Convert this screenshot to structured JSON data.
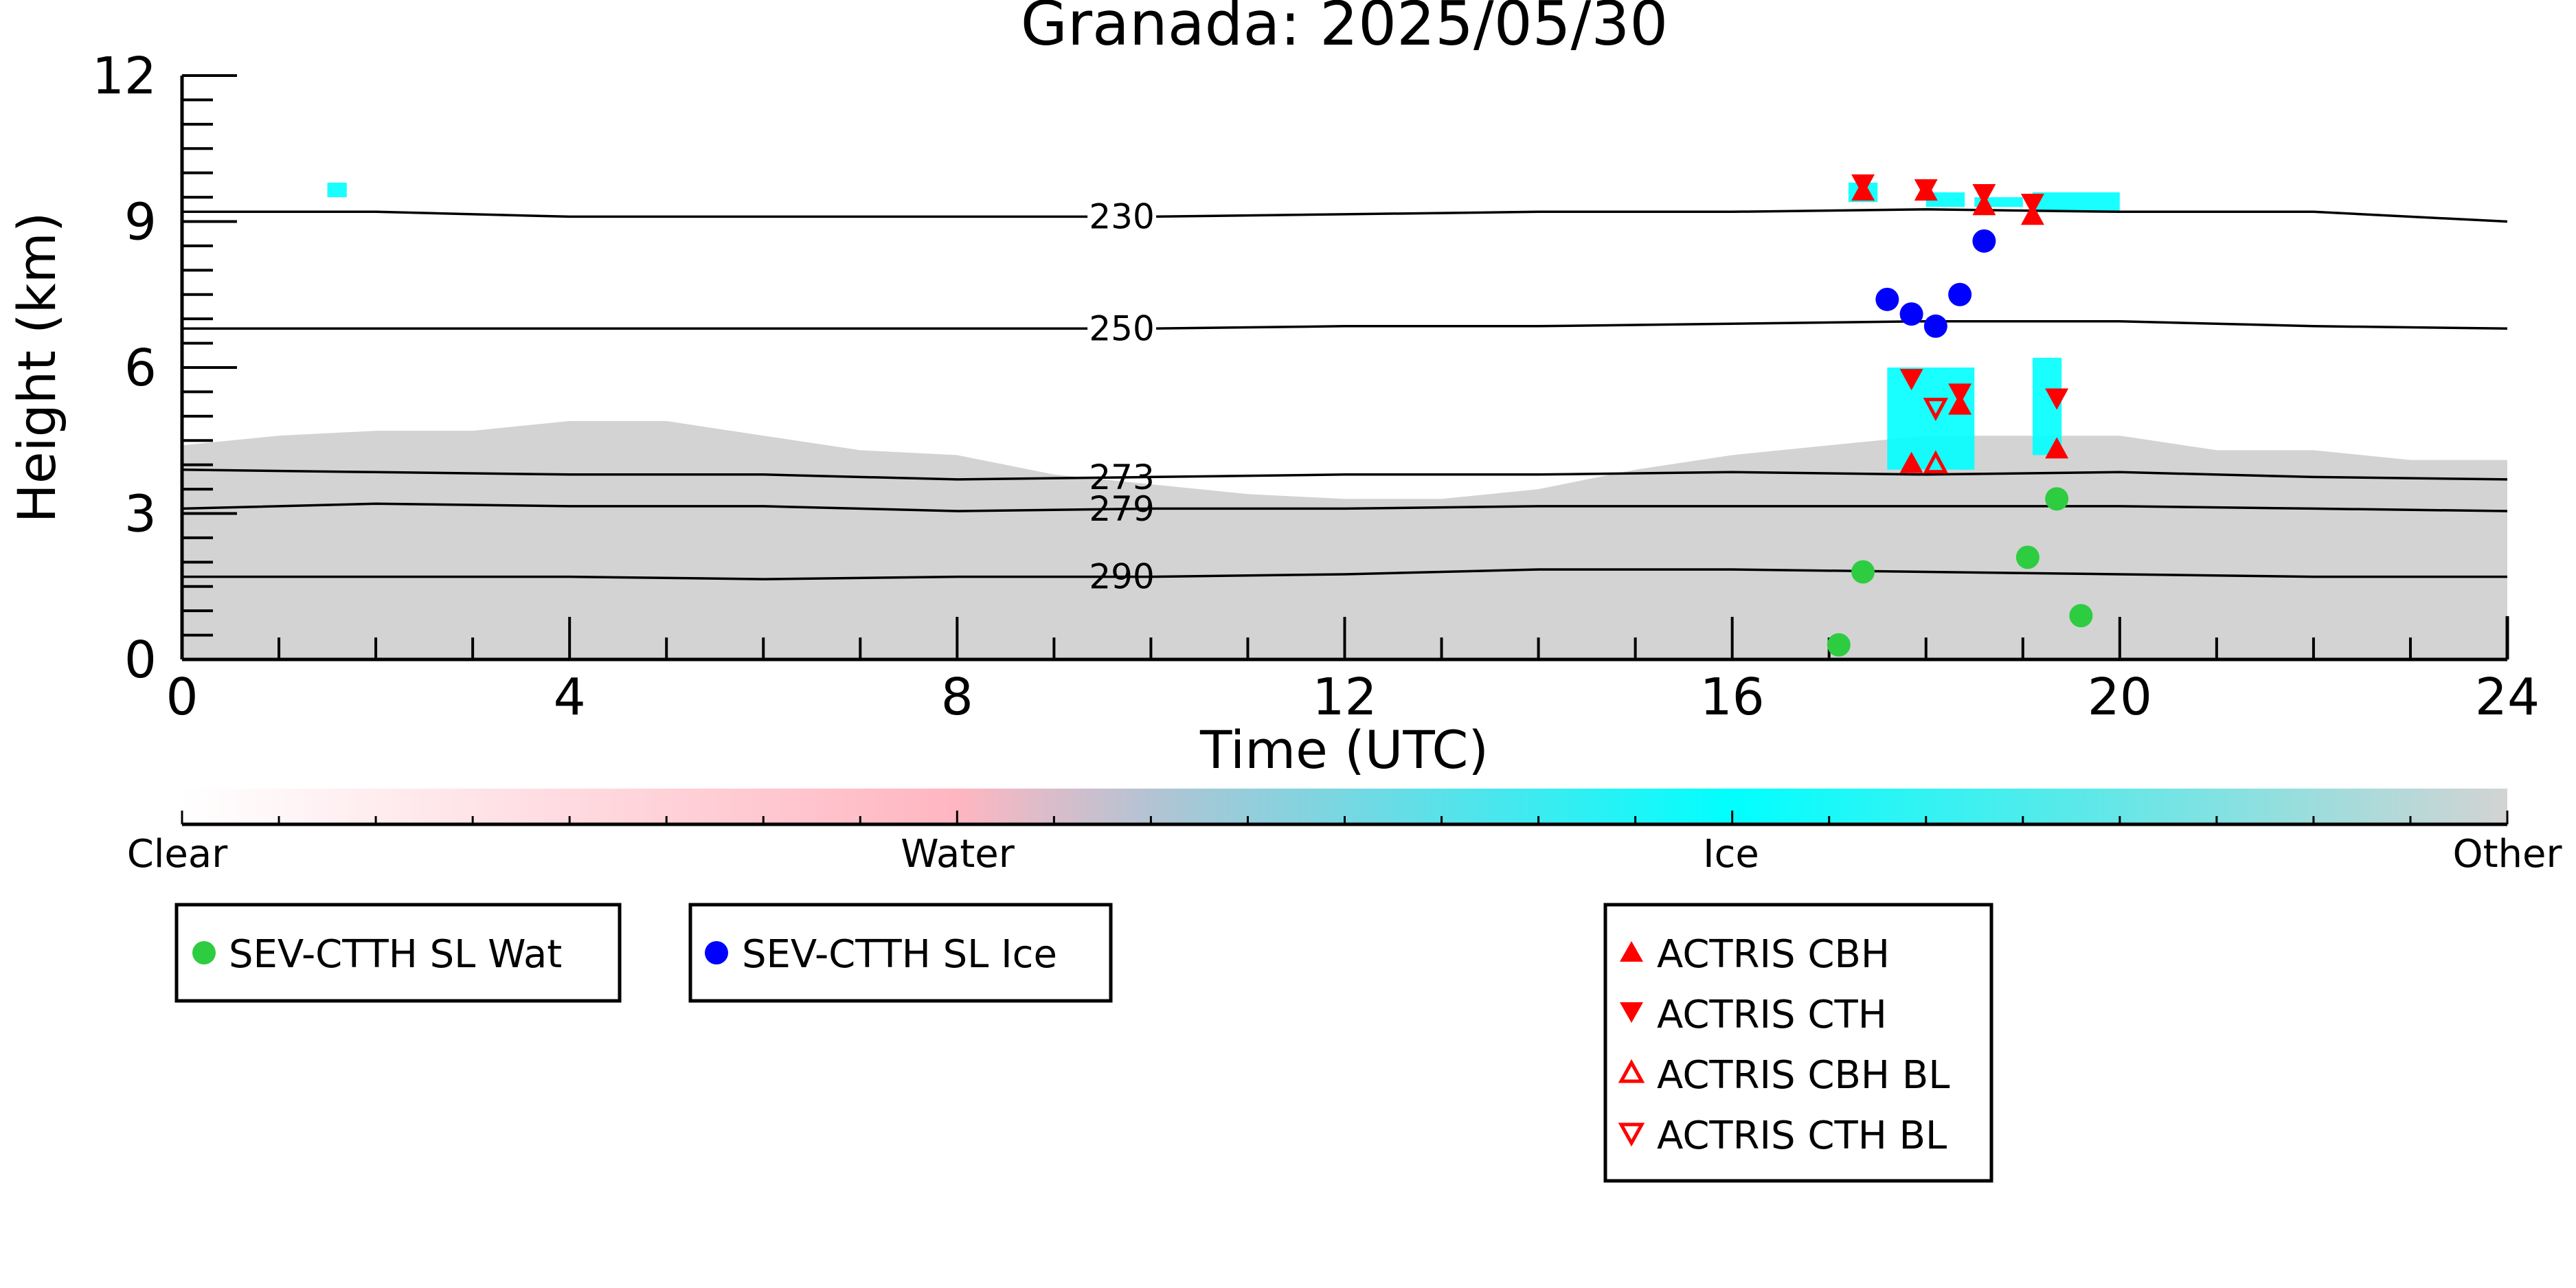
{
  "chart_data": {
    "type": "scatter",
    "title": "Granada: 2025/05/30",
    "xlabel": "Time (UTC)",
    "ylabel": "Height (km)",
    "xlim": [
      0,
      24
    ],
    "ylim": [
      0,
      12
    ],
    "xticks": [
      0,
      4,
      8,
      12,
      16,
      20,
      24
    ],
    "yticks": [
      0,
      3,
      6,
      9,
      12
    ],
    "grid": false,
    "colorbar": {
      "labels": [
        "Clear",
        "Water",
        "Ice",
        "Other"
      ],
      "colors": [
        "#ffffff",
        "#ffb6c1",
        "#00ffff",
        "#d3d3d3"
      ]
    },
    "background_field": {
      "other_layer": {
        "color": "#d3d3d3",
        "top_km": [
          [
            0,
            4.4
          ],
          [
            1,
            4.6
          ],
          [
            2,
            4.7
          ],
          [
            3,
            4.7
          ],
          [
            4,
            4.9
          ],
          [
            5,
            4.9
          ],
          [
            6,
            4.6
          ],
          [
            7,
            4.3
          ],
          [
            8,
            4.2
          ],
          [
            9,
            3.8
          ],
          [
            10,
            3.6
          ],
          [
            11,
            3.4
          ],
          [
            12,
            3.3
          ],
          [
            13,
            3.3
          ],
          [
            14,
            3.5
          ],
          [
            15,
            3.9
          ],
          [
            16,
            4.2
          ],
          [
            17,
            4.4
          ],
          [
            18,
            4.6
          ],
          [
            19,
            4.6
          ],
          [
            20,
            4.6
          ],
          [
            21,
            4.3
          ],
          [
            22,
            4.3
          ],
          [
            23,
            4.1
          ],
          [
            24,
            4.1
          ]
        ]
      },
      "ice_patches": {
        "color": "#00ffff",
        "boxes_time_height": [
          [
            1.5,
            1.7,
            9.5,
            9.8
          ],
          [
            17.2,
            17.5,
            9.4,
            9.8
          ],
          [
            18.0,
            18.4,
            9.3,
            9.6
          ],
          [
            18.5,
            19.0,
            9.3,
            9.5
          ],
          [
            19.1,
            20.0,
            9.2,
            9.6
          ],
          [
            17.6,
            18.5,
            3.9,
            6.0
          ],
          [
            19.1,
            19.4,
            4.2,
            6.2
          ]
        ]
      }
    },
    "isotherms": [
      {
        "label": "230",
        "y": [
          9.2,
          9.2,
          9.1,
          9.1,
          9.1,
          9.1,
          9.15,
          9.2,
          9.2,
          9.25,
          9.2,
          9.2,
          9.0
        ]
      },
      {
        "label": "250",
        "y": [
          6.8,
          6.8,
          6.8,
          6.8,
          6.8,
          6.8,
          6.85,
          6.85,
          6.9,
          6.95,
          6.95,
          6.85,
          6.8
        ]
      },
      {
        "label": "273",
        "y": [
          3.9,
          3.85,
          3.8,
          3.8,
          3.7,
          3.75,
          3.8,
          3.8,
          3.85,
          3.8,
          3.85,
          3.75,
          3.7
        ]
      },
      {
        "label": "279",
        "y": [
          3.1,
          3.2,
          3.15,
          3.15,
          3.05,
          3.1,
          3.1,
          3.15,
          3.15,
          3.15,
          3.15,
          3.1,
          3.05
        ]
      },
      {
        "label": "290",
        "y": [
          1.7,
          1.7,
          1.7,
          1.65,
          1.7,
          1.7,
          1.75,
          1.85,
          1.85,
          1.8,
          1.75,
          1.7,
          1.7
        ]
      }
    ],
    "isotherm_x": [
      0,
      2,
      4,
      6,
      8,
      10,
      12,
      14,
      16,
      18,
      20,
      22,
      24
    ],
    "series": [
      {
        "name": "SEV-CTTH SL Wat",
        "marker": "circle",
        "color": "#2ecc40",
        "points": [
          [
            17.1,
            0.3
          ],
          [
            17.35,
            1.8
          ],
          [
            19.05,
            2.1
          ],
          [
            19.35,
            3.3
          ],
          [
            19.6,
            0.9
          ]
        ]
      },
      {
        "name": "SEV-CTTH SL Ice",
        "marker": "circle",
        "color": "#0000ff",
        "points": [
          [
            17.6,
            7.4
          ],
          [
            17.85,
            7.1
          ],
          [
            18.1,
            6.85
          ],
          [
            18.35,
            7.5
          ],
          [
            18.6,
            8.6
          ]
        ]
      },
      {
        "name": "ACTRIS CBH",
        "marker": "triangle-up",
        "color": "#ff0000",
        "points": [
          [
            17.35,
            9.6
          ],
          [
            18.0,
            9.6
          ],
          [
            18.6,
            9.3
          ],
          [
            19.1,
            9.1
          ],
          [
            17.85,
            4.0
          ],
          [
            18.35,
            5.2
          ],
          [
            19.35,
            4.3
          ]
        ]
      },
      {
        "name": "ACTRIS CTH",
        "marker": "triangle-down",
        "color": "#ff0000",
        "points": [
          [
            17.35,
            9.8
          ],
          [
            18.0,
            9.7
          ],
          [
            18.6,
            9.6
          ],
          [
            19.1,
            9.4
          ],
          [
            17.85,
            5.8
          ],
          [
            18.35,
            5.5
          ],
          [
            19.35,
            5.4
          ]
        ]
      },
      {
        "name": "ACTRIS CBH BL",
        "marker": "triangle-up-open",
        "color": "#ff0000",
        "points": [
          [
            18.1,
            4.0
          ]
        ]
      },
      {
        "name": "ACTRIS CTH BL",
        "marker": "triangle-down-open",
        "color": "#ff0000",
        "points": [
          [
            18.1,
            5.2
          ]
        ]
      }
    ]
  }
}
